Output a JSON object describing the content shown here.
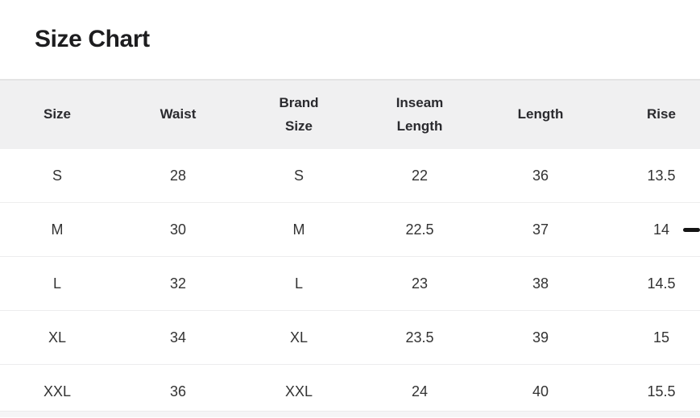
{
  "page": {
    "title": "Size Chart"
  },
  "table": {
    "columns": [
      "Size",
      "Waist",
      "Brand Size",
      "Inseam Length",
      "Length",
      "Rise"
    ],
    "rows": [
      {
        "cells": [
          "S",
          "28",
          "S",
          "22",
          "36",
          "13.5"
        ]
      },
      {
        "cells": [
          "M",
          "30",
          "M",
          "22.5",
          "37",
          "14"
        ]
      },
      {
        "cells": [
          "L",
          "32",
          "L",
          "23",
          "38",
          "14.5"
        ]
      },
      {
        "cells": [
          "XL",
          "34",
          "XL",
          "23.5",
          "39",
          "15"
        ]
      },
      {
        "cells": [
          "XXL",
          "36",
          "XXL",
          "24",
          "40",
          "15.5"
        ]
      }
    ]
  },
  "chart_data": {
    "type": "table",
    "title": "Size Chart",
    "columns": [
      "Size",
      "Waist",
      "Brand Size",
      "Inseam Length",
      "Length",
      "Rise"
    ],
    "rows": [
      [
        "S",
        28,
        "S",
        22,
        36,
        13.5
      ],
      [
        "M",
        30,
        "M",
        22.5,
        37,
        14
      ],
      [
        "L",
        32,
        "L",
        23,
        38,
        14.5
      ],
      [
        "XL",
        34,
        "XL",
        23.5,
        39,
        15
      ],
      [
        "XXL",
        36,
        "XXL",
        24,
        40,
        15.5
      ]
    ]
  },
  "colors": {
    "header_bg": "#f0f0f1",
    "header_top_border": "#e4e4e4",
    "row_divider": "#ededee",
    "title_text": "#1d1d1f",
    "cell_text": "#333333",
    "dash_indicator": "#141414",
    "bottom_strip_bg": "#f5f5f6"
  }
}
